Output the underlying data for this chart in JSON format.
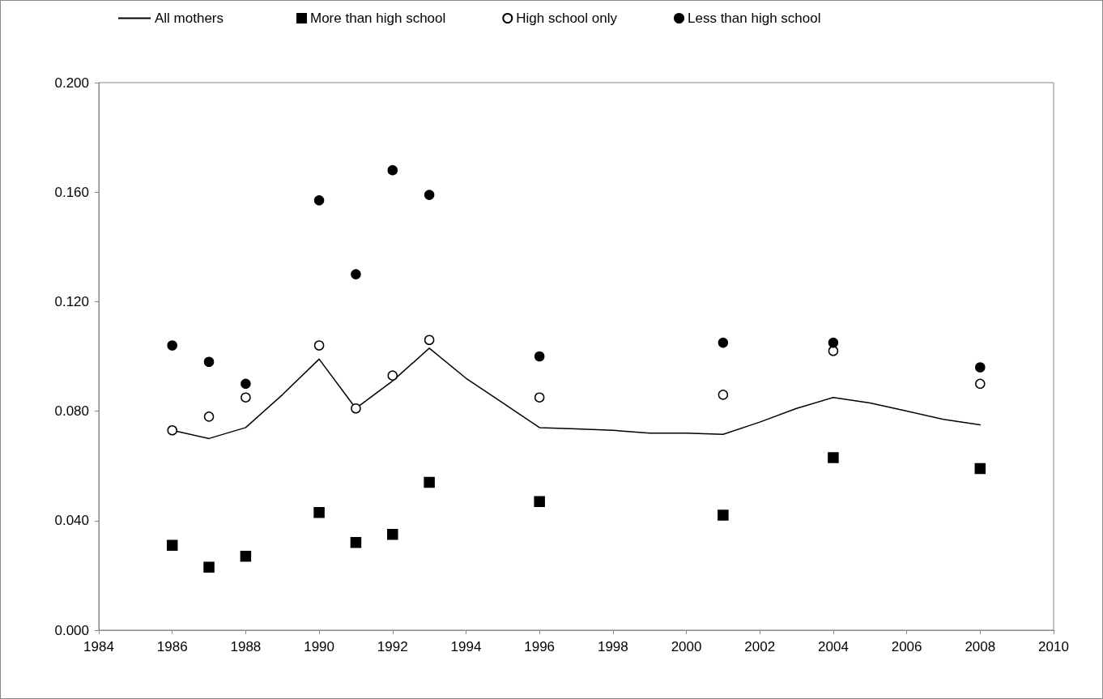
{
  "chart_data": {
    "type": "scatter",
    "x": [
      1986,
      1987,
      1988,
      1990,
      1991,
      1992,
      1993,
      1996,
      2001,
      2004,
      2008
    ],
    "series": [
      {
        "name": "All mothers",
        "type": "line",
        "color": "#000000",
        "marker": "none",
        "line_style": "solid",
        "x": [
          1986,
          1987,
          1988,
          1989,
          1990,
          1991,
          1992,
          1993,
          1994,
          1995,
          1996,
          1997,
          1998,
          1999,
          2000,
          2001,
          2002,
          2003,
          2004,
          2005,
          2006,
          2007,
          2008
        ],
        "values": [
          0.073,
          0.07,
          0.074,
          0.086,
          0.099,
          0.081,
          0.091,
          0.103,
          0.092,
          0.083,
          0.074,
          0.0735,
          0.073,
          0.072,
          0.072,
          0.0715,
          0.076,
          0.081,
          0.085,
          0.083,
          0.08,
          0.077,
          0.075
        ]
      },
      {
        "name": "More than high school",
        "color": "#000000",
        "marker": "square",
        "values": [
          0.031,
          0.023,
          0.027,
          0.043,
          0.032,
          0.035,
          0.054,
          0.047,
          0.042,
          0.063,
          0.059
        ]
      },
      {
        "name": "High school only",
        "color": "#ffffff",
        "marker": "circle",
        "values": [
          0.073,
          0.078,
          0.085,
          0.104,
          0.081,
          0.093,
          0.106,
          0.085,
          0.086,
          0.102,
          0.09
        ]
      },
      {
        "name": "Less than high school",
        "color": "#000000",
        "marker": "circle",
        "values": [
          0.104,
          0.098,
          0.09,
          0.157,
          0.13,
          0.168,
          0.159,
          0.1,
          0.105,
          0.105,
          0.096
        ]
      }
    ],
    "xlim": [
      1984,
      2010
    ],
    "xticks": [
      1984,
      1986,
      1988,
      1990,
      1992,
      1994,
      1996,
      1998,
      2000,
      2002,
      2004,
      2006,
      2008,
      2010
    ],
    "ylim": [
      0,
      0.2
    ],
    "yticks": [
      {
        "value": 0,
        "label": "0.000"
      },
      {
        "value": 0.04,
        "label": "0.040"
      },
      {
        "value": 0.08,
        "label": "0.080"
      },
      {
        "value": 0.12,
        "label": "0.120"
      },
      {
        "value": 0.16,
        "label": "0.160"
      },
      {
        "value": 0.2,
        "label": "0.200"
      }
    ],
    "grid": false,
    "legend": "top"
  }
}
